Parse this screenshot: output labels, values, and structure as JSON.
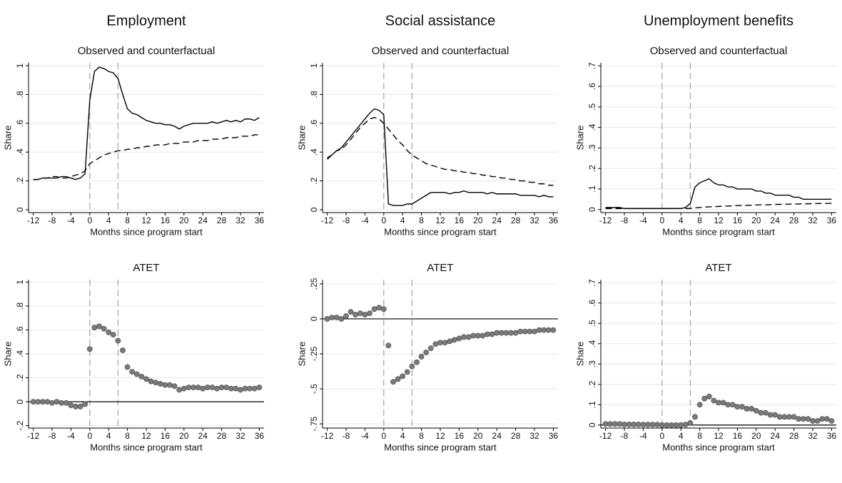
{
  "chart_data": [
    {
      "type": "line",
      "column_title": "Employment",
      "title": "Observed and counterfactual",
      "xlabel": "Months since program start",
      "ylabel": "Share",
      "x": [
        -12,
        -11,
        -10,
        -9,
        -8,
        -7,
        -6,
        -5,
        -4,
        -3,
        -2,
        -1,
        0,
        1,
        2,
        3,
        4,
        5,
        6,
        7,
        8,
        9,
        10,
        11,
        12,
        13,
        14,
        15,
        16,
        17,
        18,
        19,
        20,
        21,
        22,
        23,
        24,
        25,
        26,
        27,
        28,
        29,
        30,
        31,
        32,
        33,
        34,
        35,
        36
      ],
      "series": [
        {
          "color": "#000000",
          "dash": false,
          "values": [
            0.21,
            0.21,
            0.22,
            0.22,
            0.22,
            0.22,
            0.23,
            0.23,
            0.22,
            0.21,
            0.22,
            0.25,
            0.76,
            0.96,
            0.99,
            0.98,
            0.96,
            0.95,
            0.91,
            0.8,
            0.7,
            0.67,
            0.66,
            0.64,
            0.62,
            0.61,
            0.6,
            0.6,
            0.59,
            0.59,
            0.58,
            0.56,
            0.58,
            0.59,
            0.6,
            0.6,
            0.6,
            0.6,
            0.61,
            0.6,
            0.61,
            0.62,
            0.61,
            0.62,
            0.61,
            0.63,
            0.63,
            0.62,
            0.64
          ]
        },
        {
          "color": "#000000",
          "dash": true,
          "values": [
            0.21,
            0.21,
            0.22,
            0.22,
            0.23,
            0.23,
            0.22,
            0.22,
            0.23,
            0.24,
            0.25,
            0.27,
            0.32,
            0.34,
            0.36,
            0.38,
            0.39,
            0.4,
            0.41,
            0.41,
            0.42,
            0.42,
            0.43,
            0.43,
            0.44,
            0.44,
            0.45,
            0.45,
            0.45,
            0.46,
            0.46,
            0.46,
            0.47,
            0.47,
            0.47,
            0.48,
            0.48,
            0.48,
            0.49,
            0.49,
            0.49,
            0.5,
            0.5,
            0.5,
            0.51,
            0.51,
            0.51,
            0.52,
            0.52
          ]
        }
      ],
      "xlim": [
        -13,
        37
      ],
      "ylim": [
        -0.02,
        1.02
      ],
      "xticks": [
        -12,
        -8,
        -4,
        0,
        4,
        8,
        12,
        16,
        20,
        24,
        28,
        32,
        36
      ],
      "yticks": [
        0,
        {
          "value": 0.2,
          "label": ".2"
        },
        {
          "value": 0.4,
          "label": ".4"
        },
        {
          "value": 0.6,
          "label": ".6"
        },
        {
          "value": 0.8,
          "label": ".8"
        },
        1
      ],
      "vlines": [
        0,
        6
      ],
      "grid": true
    },
    {
      "type": "line",
      "column_title": "Social assistance",
      "title": "Observed and counterfactual",
      "xlabel": "Months since program start",
      "ylabel": "Share",
      "x": [
        -12,
        -11,
        -10,
        -9,
        -8,
        -7,
        -6,
        -5,
        -4,
        -3,
        -2,
        -1,
        0,
        1,
        2,
        3,
        4,
        5,
        6,
        7,
        8,
        9,
        10,
        11,
        12,
        13,
        14,
        15,
        16,
        17,
        18,
        19,
        20,
        21,
        22,
        23,
        24,
        25,
        26,
        27,
        28,
        29,
        30,
        31,
        32,
        33,
        34,
        35,
        36
      ],
      "series": [
        {
          "color": "#000000",
          "dash": false,
          "values": [
            0.36,
            0.38,
            0.41,
            0.43,
            0.47,
            0.51,
            0.55,
            0.59,
            0.63,
            0.67,
            0.7,
            0.69,
            0.66,
            0.04,
            0.03,
            0.03,
            0.03,
            0.04,
            0.04,
            0.06,
            0.08,
            0.1,
            0.12,
            0.12,
            0.12,
            0.12,
            0.11,
            0.12,
            0.12,
            0.13,
            0.12,
            0.12,
            0.12,
            0.12,
            0.11,
            0.12,
            0.11,
            0.11,
            0.11,
            0.11,
            0.11,
            0.1,
            0.1,
            0.1,
            0.1,
            0.09,
            0.1,
            0.09,
            0.09
          ]
        },
        {
          "color": "#000000",
          "dash": true,
          "values": [
            0.35,
            0.38,
            0.41,
            0.42,
            0.45,
            0.49,
            0.53,
            0.57,
            0.6,
            0.63,
            0.64,
            0.63,
            0.6,
            0.56,
            0.52,
            0.48,
            0.45,
            0.41,
            0.38,
            0.36,
            0.34,
            0.32,
            0.31,
            0.3,
            0.29,
            0.28,
            0.28,
            0.27,
            0.27,
            0.26,
            0.26,
            0.25,
            0.25,
            0.24,
            0.24,
            0.23,
            0.23,
            0.22,
            0.22,
            0.21,
            0.21,
            0.2,
            0.2,
            0.19,
            0.19,
            0.18,
            0.18,
            0.17,
            0.17
          ]
        }
      ],
      "xlim": [
        -13,
        37
      ],
      "ylim": [
        -0.02,
        1.02
      ],
      "xticks": [
        -12,
        -8,
        -4,
        0,
        4,
        8,
        12,
        16,
        20,
        24,
        28,
        32,
        36
      ],
      "yticks": [
        0,
        {
          "value": 0.2,
          "label": ".2"
        },
        {
          "value": 0.4,
          "label": ".4"
        },
        {
          "value": 0.6,
          "label": ".6"
        },
        {
          "value": 0.8,
          "label": ".8"
        },
        1
      ],
      "vlines": [
        0,
        6
      ],
      "grid": true
    },
    {
      "type": "line",
      "column_title": "Unemployment benefits",
      "title": "Observed and counterfactual",
      "xlabel": "Months since program start",
      "ylabel": "Share",
      "x": [
        -12,
        -11,
        -10,
        -9,
        -8,
        -7,
        -6,
        -5,
        -4,
        -3,
        -2,
        -1,
        0,
        1,
        2,
        3,
        4,
        5,
        6,
        7,
        8,
        9,
        10,
        11,
        12,
        13,
        14,
        15,
        16,
        17,
        18,
        19,
        20,
        21,
        22,
        23,
        24,
        25,
        26,
        27,
        28,
        29,
        30,
        31,
        32,
        33,
        34,
        35,
        36
      ],
      "series": [
        {
          "color": "#000000",
          "dash": false,
          "values": [
            0.01,
            0.01,
            0.01,
            0.01,
            0.005,
            0.005,
            0.005,
            0.005,
            0.005,
            0.005,
            0.005,
            0.005,
            0.005,
            0.005,
            0.005,
            0.005,
            0.005,
            0.01,
            0.03,
            0.11,
            0.13,
            0.14,
            0.15,
            0.13,
            0.12,
            0.12,
            0.11,
            0.11,
            0.1,
            0.1,
            0.1,
            0.1,
            0.09,
            0.09,
            0.08,
            0.08,
            0.07,
            0.07,
            0.07,
            0.07,
            0.06,
            0.06,
            0.05,
            0.05,
            0.05,
            0.05,
            0.05,
            0.05,
            0.05
          ]
        },
        {
          "color": "#000000",
          "dash": true,
          "values": [
            0.005,
            0.005,
            0.005,
            0.005,
            0.005,
            0.005,
            0.005,
            0.005,
            0.005,
            0.005,
            0.005,
            0.005,
            0.005,
            0.005,
            0.005,
            0.005,
            0.005,
            0.005,
            0.005,
            0.008,
            0.01,
            0.012,
            0.013,
            0.014,
            0.015,
            0.016,
            0.017,
            0.018,
            0.019,
            0.02,
            0.021,
            0.021,
            0.022,
            0.023,
            0.023,
            0.024,
            0.025,
            0.025,
            0.026,
            0.026,
            0.027,
            0.027,
            0.028,
            0.028,
            0.029,
            0.029,
            0.03,
            0.03,
            0.03
          ]
        }
      ],
      "xlim": [
        -13,
        37
      ],
      "ylim": [
        -0.015,
        0.715
      ],
      "xticks": [
        -12,
        -8,
        -4,
        0,
        4,
        8,
        12,
        16,
        20,
        24,
        28,
        32,
        36
      ],
      "yticks": [
        0,
        {
          "value": 0.1,
          "label": ".1"
        },
        {
          "value": 0.2,
          "label": ".2"
        },
        {
          "value": 0.3,
          "label": ".3"
        },
        {
          "value": 0.4,
          "label": ".4"
        },
        {
          "value": 0.5,
          "label": ".5"
        },
        {
          "value": 0.6,
          "label": ".6"
        },
        {
          "value": 0.7,
          "label": ".7"
        }
      ],
      "vlines": [
        0,
        6
      ],
      "grid": true
    },
    {
      "type": "scatter",
      "title": "ATET",
      "xlabel": "Months since program start",
      "ylabel": "Share",
      "color": "#7a7a7a",
      "x": [
        -12,
        -11,
        -10,
        -9,
        -8,
        -7,
        -6,
        -5,
        -4,
        -3,
        -2,
        -1,
        0,
        1,
        2,
        3,
        4,
        5,
        6,
        7,
        8,
        9,
        10,
        11,
        12,
        13,
        14,
        15,
        16,
        17,
        18,
        19,
        20,
        21,
        22,
        23,
        24,
        25,
        26,
        27,
        28,
        29,
        30,
        31,
        32,
        33,
        34,
        35,
        36
      ],
      "values": [
        0,
        0,
        0,
        0,
        -0.01,
        0,
        -0.01,
        -0.01,
        -0.03,
        -0.04,
        -0.04,
        -0.02,
        0.44,
        0.62,
        0.63,
        0.61,
        0.58,
        0.56,
        0.51,
        0.43,
        0.29,
        0.25,
        0.23,
        0.21,
        0.19,
        0.17,
        0.16,
        0.15,
        0.14,
        0.14,
        0.13,
        0.1,
        0.11,
        0.12,
        0.12,
        0.12,
        0.11,
        0.12,
        0.12,
        0.11,
        0.12,
        0.12,
        0.11,
        0.11,
        0.1,
        0.11,
        0.11,
        0.11,
        0.12
      ],
      "xlim": [
        -13,
        37
      ],
      "ylim": [
        -0.22,
        1.02
      ],
      "xticks": [
        -12,
        -8,
        -4,
        0,
        4,
        8,
        12,
        16,
        20,
        24,
        28,
        32,
        36
      ],
      "yticks": [
        {
          "value": -0.2,
          "label": "-.2"
        },
        0,
        {
          "value": 0.2,
          "label": ".2"
        },
        {
          "value": 0.4,
          "label": ".4"
        },
        {
          "value": 0.6,
          "label": ".6"
        },
        {
          "value": 0.8,
          "label": ".8"
        },
        1
      ],
      "vlines": [
        0,
        6
      ],
      "hline": 0,
      "grid": true
    },
    {
      "type": "scatter",
      "title": "ATET",
      "xlabel": "Months since program start",
      "ylabel": "Share",
      "color": "#7a7a7a",
      "x": [
        -12,
        -11,
        -10,
        -9,
        -8,
        -7,
        -6,
        -5,
        -4,
        -3,
        -2,
        -1,
        0,
        1,
        2,
        3,
        4,
        5,
        6,
        7,
        8,
        9,
        10,
        11,
        12,
        13,
        14,
        15,
        16,
        17,
        18,
        19,
        20,
        21,
        22,
        23,
        24,
        25,
        26,
        27,
        28,
        29,
        30,
        31,
        32,
        33,
        34,
        35,
        36
      ],
      "values": [
        0,
        0.01,
        0.01,
        0,
        0.02,
        0.05,
        0.03,
        0.04,
        0.03,
        0.04,
        0.07,
        0.08,
        0.07,
        -0.19,
        -0.45,
        -0.43,
        -0.41,
        -0.38,
        -0.34,
        -0.31,
        -0.27,
        -0.24,
        -0.21,
        -0.18,
        -0.17,
        -0.17,
        -0.16,
        -0.15,
        -0.14,
        -0.13,
        -0.13,
        -0.12,
        -0.12,
        -0.12,
        -0.11,
        -0.11,
        -0.1,
        -0.1,
        -0.1,
        -0.1,
        -0.1,
        -0.09,
        -0.09,
        -0.09,
        -0.09,
        -0.08,
        -0.08,
        -0.08,
        -0.08
      ],
      "xlim": [
        -13,
        37
      ],
      "ylim": [
        -0.78,
        0.28
      ],
      "xticks": [
        -12,
        -8,
        -4,
        0,
        4,
        8,
        12,
        16,
        20,
        24,
        28,
        32,
        36
      ],
      "yticks": [
        {
          "value": -0.75,
          "label": "-.75"
        },
        {
          "value": -0.5,
          "label": "-.5"
        },
        {
          "value": -0.25,
          "label": "-.25"
        },
        0,
        {
          "value": 0.25,
          "label": ".25"
        }
      ],
      "vlines": [
        0,
        6
      ],
      "hline": 0,
      "grid": true
    },
    {
      "type": "scatter",
      "title": "ATET",
      "xlabel": "Months since program start",
      "ylabel": "Share",
      "color": "#7a7a7a",
      "x": [
        -12,
        -11,
        -10,
        -9,
        -8,
        -7,
        -6,
        -5,
        -4,
        -3,
        -2,
        -1,
        0,
        1,
        2,
        3,
        4,
        5,
        6,
        7,
        8,
        9,
        10,
        11,
        12,
        13,
        14,
        15,
        16,
        17,
        18,
        19,
        20,
        21,
        22,
        23,
        24,
        25,
        26,
        27,
        28,
        29,
        30,
        31,
        32,
        33,
        34,
        35,
        36
      ],
      "values": [
        0.005,
        0.005,
        0.005,
        0.005,
        0.003,
        0.003,
        0.003,
        0.003,
        0.002,
        0.002,
        0.002,
        0.002,
        0,
        0,
        0,
        0,
        0,
        0.002,
        0.01,
        0.04,
        0.1,
        0.13,
        0.14,
        0.12,
        0.11,
        0.11,
        0.1,
        0.1,
        0.09,
        0.09,
        0.08,
        0.08,
        0.07,
        0.06,
        0.06,
        0.05,
        0.05,
        0.04,
        0.04,
        0.04,
        0.04,
        0.03,
        0.03,
        0.03,
        0.02,
        0.02,
        0.03,
        0.03,
        0.02
      ],
      "xlim": [
        -13,
        37
      ],
      "ylim": [
        -0.015,
        0.715
      ],
      "xticks": [
        -12,
        -8,
        -4,
        0,
        4,
        8,
        12,
        16,
        20,
        24,
        28,
        32,
        36
      ],
      "yticks": [
        0,
        {
          "value": 0.1,
          "label": ".1"
        },
        {
          "value": 0.2,
          "label": ".2"
        },
        {
          "value": 0.3,
          "label": ".3"
        },
        {
          "value": 0.4,
          "label": ".4"
        },
        {
          "value": 0.5,
          "label": ".5"
        },
        {
          "value": 0.6,
          "label": ".6"
        },
        {
          "value": 0.7,
          "label": ".7"
        }
      ],
      "vlines": [
        0,
        6
      ],
      "hline": 0,
      "grid": true
    }
  ]
}
